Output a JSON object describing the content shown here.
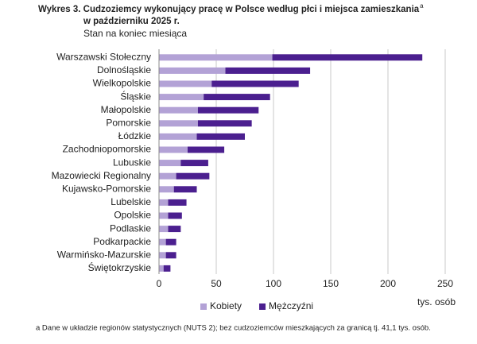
{
  "chart_data": {
    "type": "stacked-barh",
    "title": [
      "Wykres 3. Cudzoziemcy wykonujący pracę w Polsce według płci i miejsca zamieszkania",
      "w październiku 2025 r."
    ],
    "title_note": "a",
    "subtitle": "Stan na koniec miesiąca",
    "x_label": "tys. osób",
    "footnote": "a Dane w układzie regionów statystycznych (NUTS 2); bez cudzoziemców mieszkających za granicą tj. 41,1 tys. osób.",
    "categories": [
      "Warszawski Stołeczny",
      "Dolnośląskie",
      "Wielkopolskie",
      "Śląskie",
      "Małopolskie",
      "Pomorskie",
      "Łódzkie",
      "Zachodniopomorskie",
      "Lubuskie",
      "Mazowiecki Regionalny",
      "Kujawsko-Pomorskie",
      "Lubelskie",
      "Opolskie",
      "Podlaskie",
      "Podkarpackie",
      "Warmińsko-Mazurskie",
      "Świętokrzyskie"
    ],
    "series": [
      {
        "name": "Kobiety",
        "color": "#b3a2d6",
        "values": [
          99,
          58,
          46,
          39,
          34,
          34,
          33,
          25,
          19,
          15,
          13,
          8,
          8,
          8,
          6,
          6,
          4
        ]
      },
      {
        "name": "Mężczyźni",
        "color": "#4b1f8f",
        "values": [
          131,
          74,
          76,
          58,
          53,
          47,
          42,
          32,
          24,
          29,
          20,
          16,
          12,
          11,
          9,
          9,
          6
        ]
      }
    ],
    "xlim": [
      0,
      250
    ],
    "xticks": [
      0,
      50,
      100,
      150,
      200,
      250
    ],
    "grid": true,
    "legend": "bottom"
  }
}
